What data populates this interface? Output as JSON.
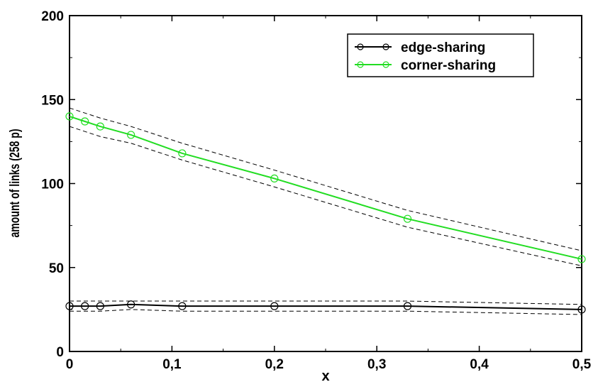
{
  "chart_data": {
    "type": "line",
    "title": "",
    "xlabel": "x",
    "ylabel": "amount of links  (258 p)",
    "xlim": [
      0,
      0.5
    ],
    "ylim": [
      0,
      200
    ],
    "x_ticks": [
      "0",
      "0,1",
      "0,2",
      "0,3",
      "0,4",
      "0,5"
    ],
    "x_tick_values": [
      0,
      0.1,
      0.2,
      0.3,
      0.4,
      0.5
    ],
    "y_ticks": [
      "0",
      "50",
      "100",
      "150",
      "200"
    ],
    "y_tick_values": [
      0,
      50,
      100,
      150,
      200
    ],
    "grid": false,
    "legend_position": "top-right",
    "x": [
      0,
      0.015,
      0.03,
      0.06,
      0.11,
      0.2,
      0.33,
      0.5
    ],
    "series": [
      {
        "name": "edge-sharing",
        "color": "#000000",
        "marker": "open-circle",
        "values": [
          27,
          27,
          27,
          28,
          27,
          27,
          27,
          25
        ],
        "bounds_upper": [
          30,
          30,
          30,
          30,
          30,
          30,
          30,
          28
        ],
        "bounds_lower": [
          24,
          24,
          24,
          25,
          24,
          24,
          24,
          22
        ]
      },
      {
        "name": "corner-sharing",
        "color": "#22dd22",
        "marker": "open-circle",
        "values": [
          140,
          137,
          134,
          129,
          118,
          103,
          79,
          55
        ],
        "bounds_upper": [
          145,
          142,
          139,
          134,
          124,
          108,
          84,
          60
        ],
        "bounds_lower": [
          134,
          131,
          128,
          124,
          114,
          98,
          74,
          51
        ]
      }
    ]
  }
}
